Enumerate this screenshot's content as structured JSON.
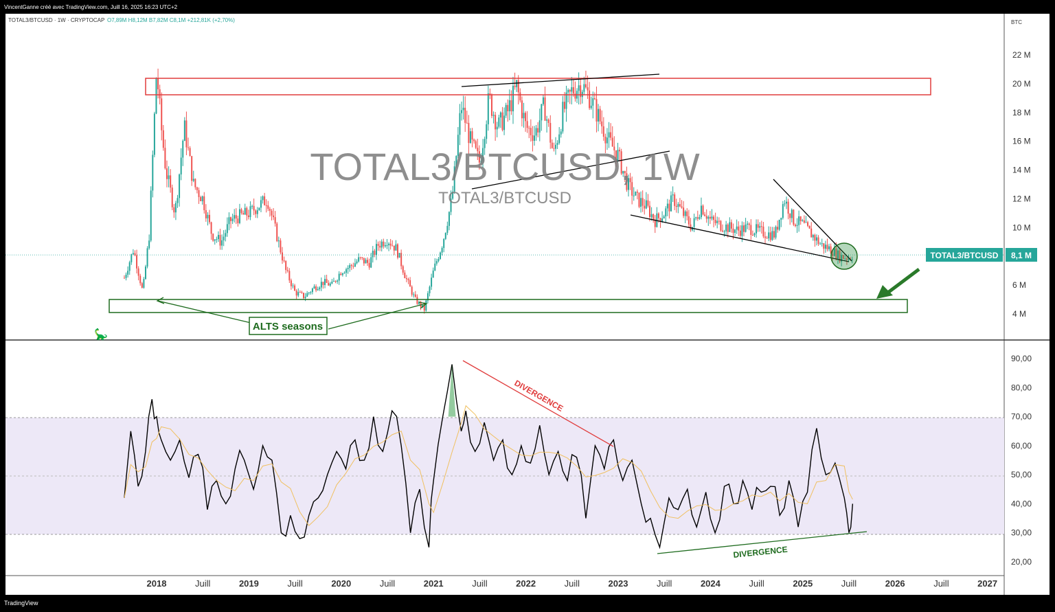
{
  "header": {
    "credit": "VincentGanne créé avec TradingView.com, Juill 16, 2025 16:23 UTC+2"
  },
  "symbol_bar": {
    "symbol": "TOTAL3/BTCUSD · 1W · CRYPTOCAP",
    "ohlc": "O7,89M  H8,12M  B7,82M  C8,1M  +212,81K (+2,70%)"
  },
  "watermark": {
    "title": "TOTAL3/BTCUSD, 1W",
    "subtitle": "TOTAL3/BTCUSD"
  },
  "price_axis": {
    "unit": "BTC",
    "ticks": [
      "22 M",
      "20 M",
      "18 M",
      "16 M",
      "14 M",
      "12 M",
      "10 M",
      "6 M",
      "4 M"
    ],
    "last_label": "TOTAL3/BTCUSD",
    "last_value": "8,1 M"
  },
  "rsi_axis": {
    "ticks": [
      "90,00",
      "80,00",
      "70,00",
      "60,00",
      "50,00",
      "40,00",
      "30,00",
      "20,00"
    ]
  },
  "time_axis": {
    "ticks": [
      "2018",
      "Juill",
      "2019",
      "Juill",
      "2020",
      "Juill",
      "2021",
      "Juill",
      "2022",
      "Juill",
      "2023",
      "Juill",
      "2024",
      "Juill",
      "2025",
      "Juill",
      "2026",
      "Juill",
      "2027"
    ]
  },
  "annotations": {
    "alts": "ALTS seasons",
    "divergence_top": "DIVERGENCE",
    "divergence_bottom": "DIVERGENCE"
  },
  "footer": {
    "brand": "TradingView"
  },
  "colors": {
    "up": "#26a69a",
    "down": "#ef5350",
    "resistance": "#e03c3c",
    "support": "#1e6b1e",
    "rsi_line": "#000000",
    "rsi_ma": "#f0c060",
    "rsi_band": "#ede8f7",
    "label_bg": "#26a69a"
  },
  "chart_data": [
    {
      "type": "line",
      "title": "TOTAL3/BTCUSD, 1W",
      "ylabel": "BTC",
      "ylim": [
        3000000,
        23000000
      ],
      "x": [
        2017.65,
        2017.75,
        2017.85,
        2017.92,
        2018.0,
        2018.05,
        2018.1,
        2018.2,
        2018.3,
        2018.4,
        2018.5,
        2018.6,
        2018.7,
        2018.8,
        2018.9,
        2019.0,
        2019.1,
        2019.2,
        2019.3,
        2019.4,
        2019.5,
        2019.6,
        2019.7,
        2019.8,
        2019.9,
        2020.0,
        2020.1,
        2020.2,
        2020.3,
        2020.4,
        2020.5,
        2020.6,
        2020.7,
        2020.8,
        2020.9,
        2021.0,
        2021.1,
        2021.2,
        2021.3,
        2021.4,
        2021.5,
        2021.6,
        2021.7,
        2021.8,
        2021.9,
        2022.0,
        2022.1,
        2022.2,
        2022.3,
        2022.4,
        2022.5,
        2022.6,
        2022.7,
        2022.8,
        2022.9,
        2023.0,
        2023.1,
        2023.2,
        2023.3,
        2023.4,
        2023.5,
        2023.6,
        2023.7,
        2023.8,
        2023.9,
        2024.0,
        2024.1,
        2024.2,
        2024.3,
        2024.4,
        2024.5,
        2024.6,
        2024.7,
        2024.8,
        2024.9,
        2025.0,
        2025.1,
        2025.2,
        2025.3,
        2025.4,
        2025.5,
        2025.54
      ],
      "values": [
        6500000,
        8500000,
        5500000,
        9500000,
        21000000,
        17000000,
        14000000,
        11000000,
        17000000,
        13000000,
        12000000,
        9500000,
        9000000,
        10500000,
        10800000,
        11000000,
        11500000,
        12000000,
        9500000,
        7000000,
        5500000,
        5200000,
        5800000,
        6200000,
        6000000,
        7000000,
        7300000,
        7800000,
        7500000,
        8800000,
        9200000,
        8500000,
        6500000,
        5000000,
        4300000,
        7000000,
        9000000,
        12000000,
        18500000,
        16000000,
        14500000,
        19000000,
        17000000,
        18000000,
        19800000,
        17000000,
        16500000,
        18500000,
        15000000,
        18000000,
        19500000,
        20000000,
        19000000,
        17500000,
        16000000,
        15000000,
        13000000,
        12000000,
        11500000,
        10500000,
        11000000,
        12000000,
        11000000,
        10000000,
        11500000,
        10500000,
        10200000,
        10000000,
        9800000,
        10000000,
        9800000,
        9600000,
        9500000,
        12000000,
        10500000,
        10200000,
        9500000,
        8800000,
        8500000,
        8000000,
        7900000,
        8100000
      ],
      "levels": {
        "resistance_zone": [
          19400000,
          20500000
        ],
        "support_zone": [
          4100000,
          5000000
        ]
      }
    },
    {
      "type": "line",
      "title": "RSI",
      "ylim": [
        15,
        95
      ],
      "bands": [
        30,
        70
      ],
      "x": [
        2017.65,
        2017.72,
        2017.8,
        2017.88,
        2017.95,
        2018.0,
        2018.05,
        2018.15,
        2018.25,
        2018.35,
        2018.45,
        2018.55,
        2018.65,
        2018.75,
        2018.85,
        2018.95,
        2019.05,
        2019.15,
        2019.25,
        2019.35,
        2019.45,
        2019.55,
        2019.65,
        2019.75,
        2019.85,
        2019.95,
        2020.05,
        2020.15,
        2020.25,
        2020.35,
        2020.45,
        2020.55,
        2020.65,
        2020.75,
        2020.85,
        2020.95,
        2021.0,
        2021.1,
        2021.2,
        2021.3,
        2021.35,
        2021.45,
        2021.55,
        2021.65,
        2021.75,
        2021.85,
        2021.95,
        2022.05,
        2022.15,
        2022.25,
        2022.35,
        2022.45,
        2022.55,
        2022.65,
        2022.75,
        2022.85,
        2022.95,
        2023.05,
        2023.15,
        2023.25,
        2023.35,
        2023.45,
        2023.55,
        2023.65,
        2023.75,
        2023.85,
        2023.95,
        2024.05,
        2024.15,
        2024.25,
        2024.35,
        2024.45,
        2024.55,
        2024.65,
        2024.75,
        2024.85,
        2024.95,
        2025.05,
        2025.15,
        2025.25,
        2025.35,
        2025.45,
        2025.5,
        2025.54
      ],
      "values": [
        42,
        65,
        46,
        58,
        76,
        70,
        62,
        55,
        62,
        49,
        57,
        38,
        48,
        40,
        52,
        55,
        45,
        60,
        55,
        30,
        36,
        28,
        36,
        42,
        50,
        58,
        52,
        62,
        55,
        70,
        58,
        72,
        60,
        30,
        45,
        25,
        48,
        70,
        88,
        65,
        72,
        58,
        68,
        55,
        62,
        50,
        60,
        54,
        67,
        50,
        58,
        48,
        56,
        35,
        60,
        52,
        62,
        48,
        55,
        40,
        35,
        25,
        42,
        38,
        45,
        32,
        44,
        30,
        46,
        40,
        48,
        38,
        44,
        46,
        36,
        48,
        32,
        44,
        66,
        50,
        54,
        42,
        30,
        40
      ],
      "series": [
        {
          "values": [
            42,
            65,
            46,
            58,
            76,
            70,
            62,
            55,
            62,
            49,
            57,
            38,
            48,
            40,
            52,
            55,
            45,
            60,
            55,
            30,
            36,
            28,
            36,
            42,
            50,
            58,
            52,
            62,
            55,
            70,
            58,
            72,
            60,
            30,
            45,
            25,
            48,
            70,
            88,
            65,
            72,
            58,
            68,
            55,
            62,
            50,
            60,
            54,
            67,
            50,
            58,
            48,
            56,
            35,
            60,
            52,
            62,
            48,
            55,
            40,
            35,
            25,
            42,
            38,
            45,
            32,
            44,
            30,
            46,
            40,
            48,
            38,
            44,
            46,
            36,
            48,
            32,
            44,
            66,
            50,
            54,
            42,
            30,
            40
          ]
        }
      ]
    }
  ]
}
